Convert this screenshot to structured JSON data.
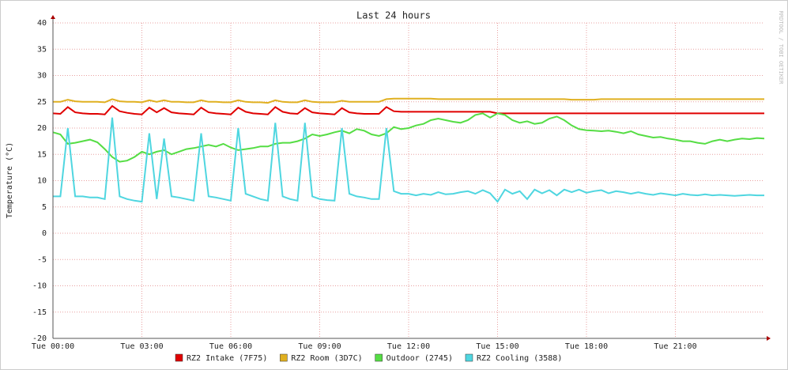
{
  "chart_data": {
    "type": "line",
    "title": "Last 24 hours",
    "y_label": "Temperature (°C)",
    "watermark": "RRDTOOL / TOBI OETIKER",
    "grid": true,
    "xlim": [
      0,
      24
    ],
    "ylim": [
      -20,
      40
    ],
    "yticks": [
      -20,
      -15,
      -10,
      -5,
      0,
      5,
      10,
      15,
      20,
      25,
      30,
      35,
      40
    ],
    "xticks": [
      {
        "value": 0,
        "label": "Tue 00:00"
      },
      {
        "value": 3,
        "label": "Tue 03:00"
      },
      {
        "value": 6,
        "label": "Tue 06:00"
      },
      {
        "value": 9,
        "label": "Tue 09:00"
      },
      {
        "value": 12,
        "label": "Tue 12:00"
      },
      {
        "value": 15,
        "label": "Tue 15:00"
      },
      {
        "value": 18,
        "label": "Tue 18:00"
      },
      {
        "value": 21,
        "label": "Tue 21:00"
      }
    ],
    "x": [
      0,
      0.25,
      0.5,
      0.75,
      1,
      1.25,
      1.5,
      1.75,
      2,
      2.25,
      2.5,
      2.75,
      3,
      3.25,
      3.5,
      3.75,
      4,
      4.25,
      4.5,
      4.75,
      5,
      5.25,
      5.5,
      5.75,
      6,
      6.25,
      6.5,
      6.75,
      7,
      7.25,
      7.5,
      7.75,
      8,
      8.25,
      8.5,
      8.75,
      9,
      9.25,
      9.5,
      9.75,
      10,
      10.25,
      10.5,
      10.75,
      11,
      11.25,
      11.5,
      11.75,
      12,
      12.25,
      12.5,
      12.75,
      13,
      13.25,
      13.5,
      13.75,
      14,
      14.25,
      14.5,
      14.75,
      15,
      15.25,
      15.5,
      15.75,
      16,
      16.25,
      16.5,
      16.75,
      17,
      17.25,
      17.5,
      17.75,
      18,
      18.25,
      18.5,
      18.75,
      19,
      19.25,
      19.5,
      19.75,
      20,
      20.25,
      20.5,
      20.75,
      21,
      21.25,
      21.5,
      21.75,
      22,
      22.25,
      22.5,
      22.75,
      23,
      23.25,
      23.5,
      23.75,
      24
    ],
    "series": [
      {
        "name": "RZ2 Intake (7F75)",
        "color": "#e00000",
        "values": [
          22.8,
          22.7,
          24,
          23,
          22.8,
          22.7,
          22.7,
          22.6,
          24.2,
          23.2,
          22.9,
          22.7,
          22.6,
          23.9,
          23,
          23.8,
          23,
          22.8,
          22.7,
          22.6,
          23.9,
          23,
          22.8,
          22.7,
          22.6,
          23.9,
          23.1,
          22.8,
          22.7,
          22.6,
          24,
          23.1,
          22.8,
          22.7,
          23.8,
          23,
          22.8,
          22.7,
          22.6,
          23.8,
          23,
          22.8,
          22.7,
          22.7,
          22.7,
          24,
          23.2,
          23.1,
          23.1,
          23.1,
          23.1,
          23.1,
          23.1,
          23.1,
          23.1,
          23.1,
          23.1,
          23.1,
          23.1,
          23.1,
          22.8,
          22.8,
          22.8,
          22.8,
          22.8,
          22.8,
          22.8,
          22.8,
          22.8,
          22.8,
          22.8,
          22.8,
          22.8,
          22.8,
          22.8,
          22.8,
          22.8,
          22.8,
          22.8,
          22.8,
          22.8,
          22.8,
          22.8,
          22.8,
          22.8,
          22.8,
          22.8,
          22.8,
          22.8,
          22.8,
          22.8,
          22.8,
          22.8,
          22.8,
          22.8,
          22.8,
          22.8
        ]
      },
      {
        "name": "RZ2 Room (3D7C)",
        "color": "#e0b020",
        "values": [
          25,
          25,
          25.4,
          25.1,
          25,
          25,
          25,
          24.9,
          25.5,
          25.1,
          25,
          25,
          24.9,
          25.3,
          25,
          25.3,
          25,
          25,
          24.9,
          24.9,
          25.3,
          25,
          25,
          24.9,
          24.9,
          25.3,
          25,
          24.9,
          24.9,
          24.8,
          25.3,
          25,
          24.9,
          24.9,
          25.3,
          25,
          24.9,
          24.9,
          24.9,
          25.2,
          25,
          25,
          25,
          25,
          25,
          25.5,
          25.6,
          25.6,
          25.6,
          25.6,
          25.6,
          25.6,
          25.5,
          25.5,
          25.5,
          25.5,
          25.5,
          25.5,
          25.5,
          25.5,
          25.5,
          25.5,
          25.5,
          25.5,
          25.5,
          25.5,
          25.5,
          25.5,
          25.5,
          25.5,
          25.4,
          25.4,
          25.4,
          25.4,
          25.5,
          25.5,
          25.5,
          25.5,
          25.5,
          25.5,
          25.5,
          25.5,
          25.5,
          25.5,
          25.5,
          25.5,
          25.5,
          25.5,
          25.5,
          25.5,
          25.5,
          25.5,
          25.5,
          25.5,
          25.5,
          25.5,
          25.5
        ]
      },
      {
        "name": "Outdoor (2745)",
        "color": "#55dd44",
        "values": [
          19.2,
          18.8,
          17,
          17.2,
          17.5,
          17.8,
          17.3,
          16,
          14.5,
          13.6,
          13.8,
          14.5,
          15.5,
          15,
          15.5,
          15.8,
          15,
          15.5,
          16,
          16.2,
          16.5,
          16.8,
          16.5,
          17,
          16.3,
          15.8,
          16,
          16.2,
          16.5,
          16.5,
          17,
          17.2,
          17.2,
          17.5,
          18,
          18.8,
          18.5,
          18.8,
          19.2,
          19.5,
          19,
          19.8,
          19.5,
          18.8,
          18.5,
          19,
          20.2,
          19.8,
          20,
          20.5,
          20.8,
          21.5,
          21.8,
          21.5,
          21.2,
          21,
          21.5,
          22.5,
          22.8,
          22,
          22.8,
          22.5,
          21.5,
          21,
          21.3,
          20.8,
          21,
          21.8,
          22.2,
          21.5,
          20.5,
          19.8,
          19.6,
          19.5,
          19.4,
          19.5,
          19.3,
          19,
          19.4,
          18.8,
          18.5,
          18.2,
          18.3,
          18,
          17.8,
          17.5,
          17.5,
          17.2,
          17,
          17.5,
          17.8,
          17.5,
          17.8,
          18,
          17.9,
          18.1,
          18
        ]
      },
      {
        "name": "RZ2 Cooling (3588)",
        "color": "#4fd6e0",
        "values": [
          7,
          7,
          20,
          7,
          7,
          6.8,
          6.8,
          6.5,
          22,
          7,
          6.5,
          6.2,
          6,
          19,
          6.5,
          18,
          7,
          6.8,
          6.5,
          6.2,
          19,
          7,
          6.8,
          6.5,
          6.2,
          20,
          7.5,
          7,
          6.5,
          6.2,
          21,
          7,
          6.5,
          6.2,
          21,
          7,
          6.5,
          6.3,
          6.2,
          20,
          7.5,
          7,
          6.8,
          6.5,
          6.5,
          20,
          8,
          7.5,
          7.5,
          7.2,
          7.5,
          7.3,
          7.8,
          7.4,
          7.5,
          7.8,
          8,
          7.5,
          8.2,
          7.6,
          6,
          8.3,
          7.5,
          8,
          6.5,
          8.3,
          7.6,
          8.2,
          7.2,
          8.3,
          7.8,
          8.3,
          7.7,
          8,
          8.2,
          7.6,
          8,
          7.8,
          7.5,
          7.8,
          7.5,
          7.3,
          7.6,
          7.4,
          7.2,
          7.5,
          7.3,
          7.2,
          7.4,
          7.2,
          7.3,
          7.2,
          7.1,
          7.2,
          7.3,
          7.2,
          7.2
        ]
      }
    ]
  }
}
